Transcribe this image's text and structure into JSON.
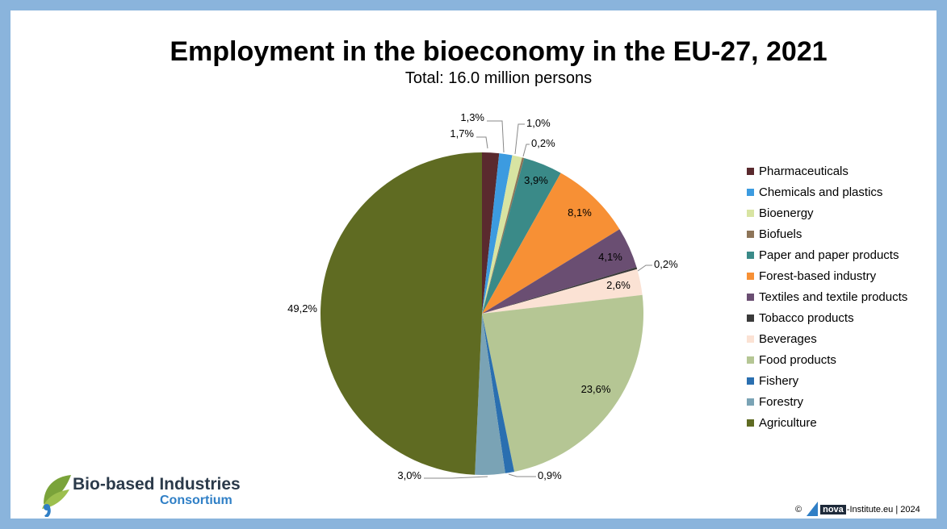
{
  "chart_data": {
    "type": "pie",
    "title": "Employment in the bioeconomy in the EU-27, 2021",
    "subtitle": "Total: 16.0 million persons",
    "slices": [
      {
        "name": "Pharmaceuticals",
        "value": 1.7,
        "label": "1,7%",
        "color": "#5a2a2e"
      },
      {
        "name": "Chemicals and plastics",
        "value": 1.3,
        "label": "1,3%",
        "color": "#3c9be0"
      },
      {
        "name": "Bioenergy",
        "value": 1.0,
        "label": "1,0%",
        "color": "#d8e4a2"
      },
      {
        "name": "Biofuels",
        "value": 0.2,
        "label": "0,2%",
        "color": "#8d7458"
      },
      {
        "name": "Paper and paper products",
        "value": 3.9,
        "label": "3,9%",
        "color": "#3a8a88"
      },
      {
        "name": "Forest-based industry",
        "value": 8.1,
        "label": "8,1%",
        "color": "#f79035"
      },
      {
        "name": "Textiles and textile products",
        "value": 4.1,
        "label": "4,1%",
        "color": "#6a4e72"
      },
      {
        "name": "Tobacco products",
        "value": 0.2,
        "label": "0,2%",
        "color": "#3a3a3a"
      },
      {
        "name": "Beverages",
        "value": 2.6,
        "label": "2,6%",
        "color": "#fbe2d4"
      },
      {
        "name": "Food products",
        "value": 23.6,
        "label": "23,6%",
        "color": "#b5c694"
      },
      {
        "name": "Fishery",
        "value": 0.9,
        "label": "0,9%",
        "color": "#2a6fb0"
      },
      {
        "name": "Forestry",
        "value": 3.0,
        "label": "3,0%",
        "color": "#7aa3b5"
      },
      {
        "name": "Agriculture",
        "value": 49.2,
        "label": "49,2%",
        "color": "#5f6b22"
      }
    ],
    "legend_position": "right"
  },
  "logo": {
    "line1": "Bio-based Industries",
    "line2": "Consortium"
  },
  "credit": {
    "prefix": "©",
    "nova": "nova",
    "suffix": "-Institute.eu | 2024"
  }
}
